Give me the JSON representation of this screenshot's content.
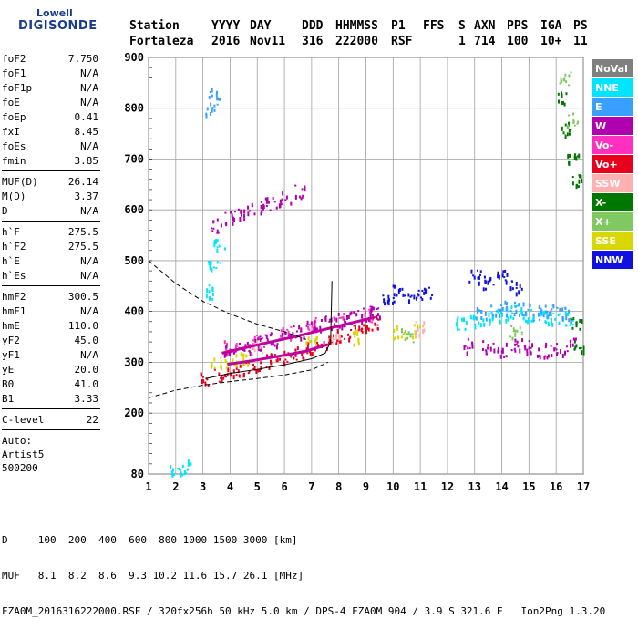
{
  "logo": {
    "line1": "Lowell",
    "line2": "DIGISONDE"
  },
  "header": {
    "labels": [
      "Station",
      "YYYY",
      "DAY",
      "DDD",
      "HHMMSS",
      "P1",
      "FFS",
      "S",
      "AXN",
      "PPS",
      "IGA",
      "PS"
    ],
    "values": [
      "Fortaleza",
      "2016",
      "Nov11",
      "316",
      "222000",
      "RSF",
      "1",
      "714",
      "100",
      "10+",
      "11"
    ]
  },
  "params": {
    "group1": [
      {
        "name": "foF2",
        "value": "7.750"
      },
      {
        "name": "foF1",
        "value": "N/A"
      },
      {
        "name": "foF1p",
        "value": "N/A"
      },
      {
        "name": "foE",
        "value": "N/A"
      },
      {
        "name": "foEp",
        "value": "0.41"
      },
      {
        "name": "fxI",
        "value": "8.45"
      },
      {
        "name": "foEs",
        "value": "N/A"
      },
      {
        "name": "fmin",
        "value": "3.85"
      }
    ],
    "group2": [
      {
        "name": "MUF(D)",
        "value": "26.14"
      },
      {
        "name": "M(D)",
        "value": "3.37"
      },
      {
        "name": "D",
        "value": "N/A"
      }
    ],
    "group3": [
      {
        "name": "h`F",
        "value": "275.5"
      },
      {
        "name": "h`F2",
        "value": "275.5"
      },
      {
        "name": "h`E",
        "value": "N/A"
      },
      {
        "name": "h`Es",
        "value": "N/A"
      }
    ],
    "group4": [
      {
        "name": "hmF2",
        "value": "300.5"
      },
      {
        "name": "hmF1",
        "value": "N/A"
      },
      {
        "name": "hmE",
        "value": "110.0"
      },
      {
        "name": "yF2",
        "value": "45.0"
      },
      {
        "name": "yF1",
        "value": "N/A"
      },
      {
        "name": "yE",
        "value": "20.0"
      },
      {
        "name": "B0",
        "value": "41.0"
      },
      {
        "name": "B1",
        "value": "3.33"
      }
    ],
    "group5": [
      {
        "name": "C-level",
        "value": "22"
      }
    ],
    "auto_lines": [
      "Auto:",
      "Artist5",
      "500200"
    ]
  },
  "legend": [
    {
      "label": "NoVal",
      "color": "#808080"
    },
    {
      "label": "NNE",
      "color": "#00e5ff"
    },
    {
      "label": "E",
      "color": "#3aa0ff"
    },
    {
      "label": "W",
      "color": "#b000b0"
    },
    {
      "label": "Vo-",
      "color": "#ff30c0"
    },
    {
      "label": "Vo+",
      "color": "#e8001c"
    },
    {
      "label": "SSW",
      "color": "#ffb0b0"
    },
    {
      "label": "X-",
      "color": "#007800"
    },
    {
      "label": "X+",
      "color": "#80c860"
    },
    {
      "label": "SSE",
      "color": "#d8d800"
    },
    {
      "label": "NNW",
      "color": "#1010e0"
    }
  ],
  "bottom": {
    "d_line": "D     100  200  400  600  800 1000 1500 3000 [km]",
    "muf_line": "MUF   8.1  8.2  8.6  9.3 10.2 11.6 15.7 26.1 [MHz]",
    "footer": "FZA0M_2016316222000.RSF / 320fx256h 50 kHz 5.0 km / DPS-4 FZA0M 904 / 3.9 S 321.6 E   Ion2Png 1.3.20"
  },
  "chart_data": {
    "type": "scatter",
    "x_ticks": [
      "1",
      "2",
      "3",
      "4",
      "5",
      "6",
      "7",
      "8",
      "9",
      "10",
      "11",
      "12",
      "13",
      "14",
      "15",
      "16",
      "17"
    ],
    "y_ticks": [
      "80",
      "200",
      "300",
      "400",
      "500",
      "600",
      "700",
      "800",
      "900"
    ],
    "xlim": [
      1,
      17
    ],
    "ylim": [
      80,
      900
    ],
    "grid": true,
    "legend_position": "right",
    "series": [
      {
        "name": "Vo+",
        "color": "#e8001c",
        "points": [
          [
            3.1,
            268
          ],
          [
            3.6,
            275
          ],
          [
            4.0,
            282
          ],
          [
            4.5,
            290
          ],
          [
            5.0,
            298
          ],
          [
            5.5,
            305
          ],
          [
            6.0,
            312
          ],
          [
            6.5,
            320
          ],
          [
            7.0,
            328
          ],
          [
            7.5,
            340
          ],
          [
            8.0,
            352
          ],
          [
            8.5,
            362
          ],
          [
            9.0,
            372
          ],
          [
            9.3,
            380
          ]
        ]
      },
      {
        "name": "Vo-",
        "color": "#ff30c0",
        "points": [
          [
            4.0,
            330
          ],
          [
            5.0,
            345
          ],
          [
            6.0,
            360
          ],
          [
            7.0,
            375
          ],
          [
            8.0,
            385
          ],
          [
            9.0,
            392
          ]
        ]
      },
      {
        "name": "W",
        "color": "#b000b0",
        "points": [
          [
            4.0,
            325
          ],
          [
            4.5,
            332
          ],
          [
            5.0,
            340
          ],
          [
            5.5,
            347
          ],
          [
            6.0,
            355
          ],
          [
            6.5,
            362
          ],
          [
            7.0,
            370
          ],
          [
            7.5,
            378
          ],
          [
            8.0,
            385
          ],
          [
            8.5,
            390
          ],
          [
            9.0,
            395
          ],
          [
            9.3,
            400
          ],
          [
            3.5,
            570
          ],
          [
            4.0,
            585
          ],
          [
            4.5,
            595
          ],
          [
            5.0,
            605
          ],
          [
            5.5,
            615
          ],
          [
            6.0,
            625
          ],
          [
            6.5,
            638
          ],
          [
            12.8,
            335
          ],
          [
            13.5,
            330
          ],
          [
            14.0,
            325
          ],
          [
            14.5,
            335
          ],
          [
            15.0,
            330
          ],
          [
            15.5,
            325
          ],
          [
            16.0,
            330
          ],
          [
            16.5,
            335
          ]
        ]
      },
      {
        "name": "NNE",
        "color": "#00e5ff",
        "points": [
          [
            12.5,
            380
          ],
          [
            13.0,
            385
          ],
          [
            13.5,
            390
          ],
          [
            14.0,
            395
          ],
          [
            14.5,
            400
          ],
          [
            15.0,
            395
          ],
          [
            15.5,
            390
          ],
          [
            16.0,
            392
          ],
          [
            16.5,
            388
          ],
          [
            3.2,
            440
          ],
          [
            3.4,
            500
          ],
          [
            3.6,
            530
          ],
          [
            2.0,
            95
          ],
          [
            2.3,
            97
          ]
        ]
      },
      {
        "name": "E",
        "color": "#3aa0ff",
        "points": [
          [
            13.2,
            395
          ],
          [
            13.8,
            400
          ],
          [
            14.3,
            410
          ],
          [
            14.8,
            405
          ],
          [
            15.3,
            398
          ],
          [
            15.8,
            402
          ],
          [
            16.3,
            395
          ],
          [
            3.3,
            800
          ],
          [
            3.4,
            830
          ]
        ]
      },
      {
        "name": "NNW",
        "color": "#1010e0",
        "points": [
          [
            9.8,
            420
          ],
          [
            10.2,
            440
          ],
          [
            10.7,
            430
          ],
          [
            11.2,
            435
          ],
          [
            13.0,
            470
          ],
          [
            13.5,
            460
          ],
          [
            14.0,
            470
          ],
          [
            14.5,
            450
          ]
        ]
      },
      {
        "name": "SSE",
        "color": "#d8d800",
        "points": [
          [
            3.5,
            300
          ],
          [
            4.0,
            305
          ],
          [
            4.6,
            310
          ],
          [
            7.0,
            340
          ],
          [
            8.6,
            350
          ],
          [
            10.2,
            360
          ],
          [
            10.8,
            365
          ]
        ]
      },
      {
        "name": "X-",
        "color": "#007800",
        "points": [
          [
            16.2,
            820
          ],
          [
            16.4,
            760
          ],
          [
            16.6,
            700
          ],
          [
            16.8,
            660
          ],
          [
            16.7,
            380
          ],
          [
            16.8,
            330
          ]
        ]
      },
      {
        "name": "X+",
        "color": "#80c860",
        "points": [
          [
            16.3,
            860
          ],
          [
            16.6,
            780
          ],
          [
            10.5,
            355
          ],
          [
            14.5,
            360
          ]
        ]
      },
      {
        "name": "SSW",
        "color": "#ffb0b0",
        "points": [
          [
            5.0,
            330
          ],
          [
            7.8,
            345
          ],
          [
            11.0,
            370
          ]
        ]
      }
    ]
  }
}
